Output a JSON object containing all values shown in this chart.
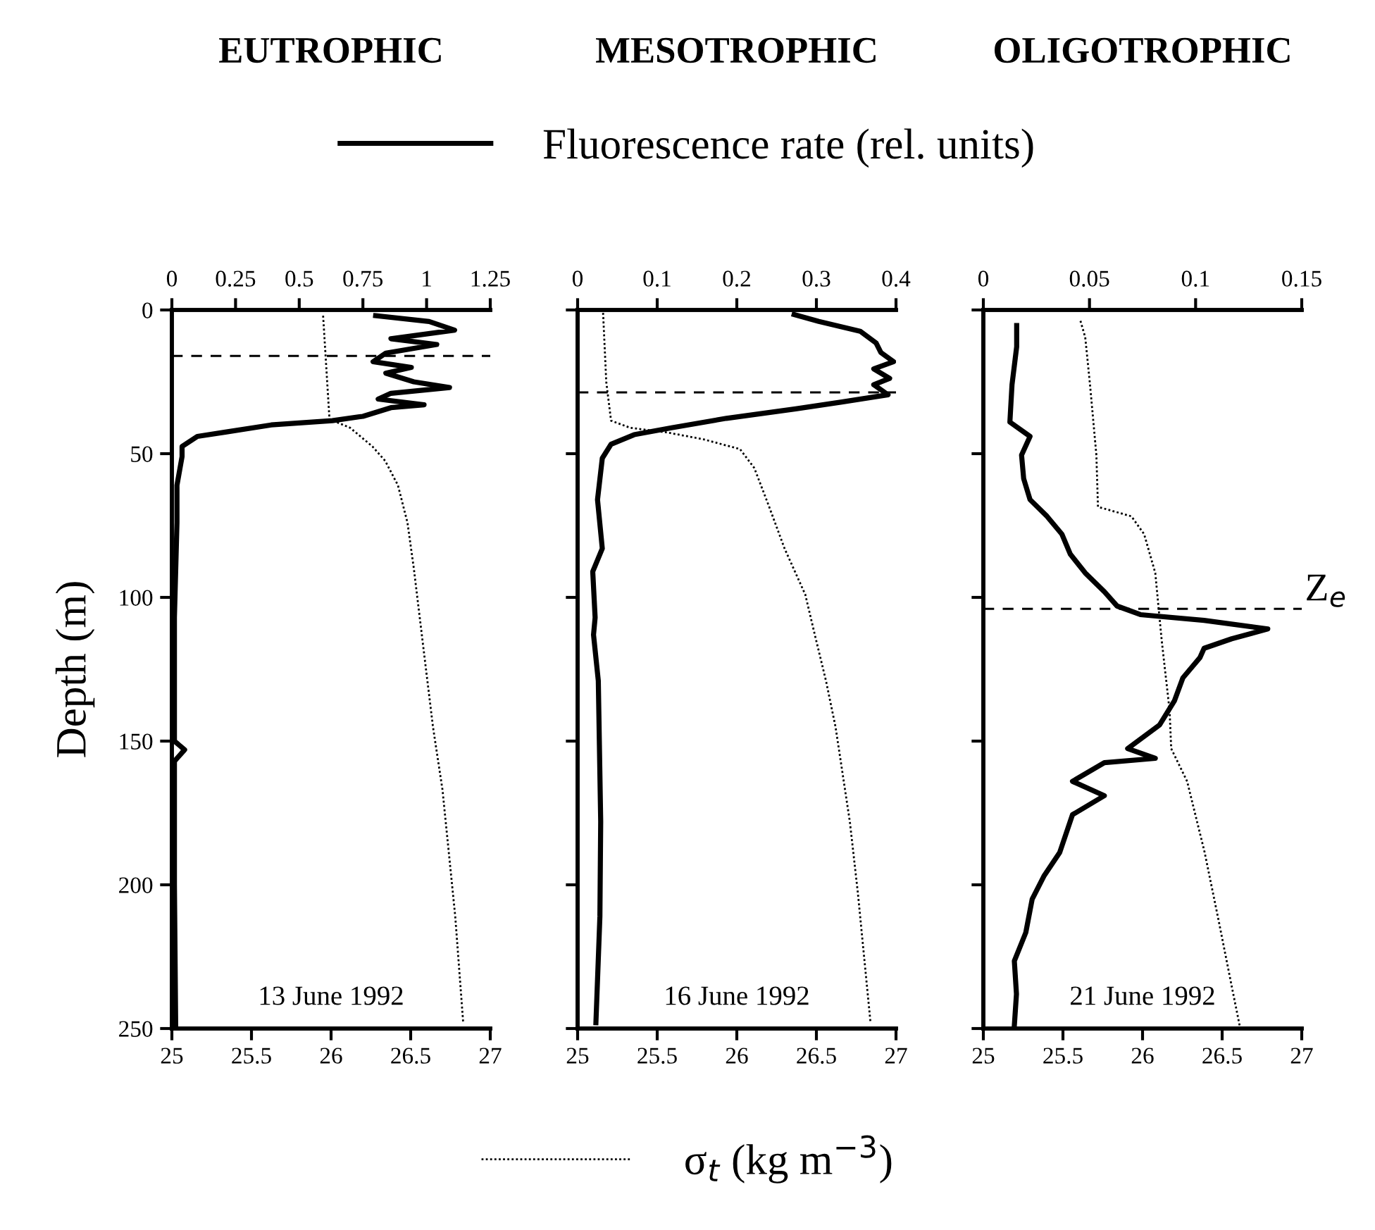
{
  "chart_data": [
    {
      "type": "line",
      "title": "EUTROPHIC",
      "ylabel": "Depth (m)",
      "legend": "top",
      "annotations": [
        "13 June 1992"
      ],
      "ylim": [
        250,
        0
      ],
      "yticks": [
        0,
        50,
        100,
        150,
        200,
        250
      ],
      "xlim": [
        25,
        27
      ],
      "xticks": [
        25,
        25.5,
        26,
        26.5,
        27
      ],
      "x2lim": [
        0,
        1.25
      ],
      "x2ticks": [
        0,
        0.25,
        0.5,
        0.75,
        1,
        1.25
      ],
      "grid": false,
      "ref_lines": [
        {
          "axis": "y",
          "value": 16,
          "line_style": "dashed"
        }
      ],
      "series": [
        {
          "name": "Fluorescence rate (rel. units)",
          "axis": "x2",
          "color": "#000000",
          "line_style": "solid",
          "x": [
            0.8,
            1.01,
            1.11,
            0.86,
            1.04,
            0.84,
            0.79,
            0.94,
            0.84,
            0.95,
            1.09,
            0.86,
            0.81,
            0.99,
            0.86,
            0.75,
            0.63,
            0.39,
            0.21,
            0.1,
            0.04,
            0.04,
            0.02,
            0.02,
            0.01,
            0.01,
            0.05,
            0.01,
            0.01,
            0.015
          ],
          "values": [
            2,
            4,
            7,
            10,
            12,
            15,
            18,
            20,
            22,
            25,
            27,
            29,
            31,
            33,
            34,
            37,
            38.5,
            40,
            42.5,
            44,
            47.5,
            51,
            61,
            74,
            107,
            150,
            153,
            157,
            200,
            250
          ]
        },
        {
          "name": "σ$_{t}$ (kg m$^{−3}$)",
          "color": "#000000",
          "line_style": "dotted",
          "x": [
            25.95,
            25.99,
            26.12,
            26.26,
            26.34,
            26.42,
            26.48,
            26.52,
            26.57,
            26.64,
            26.7,
            26.78,
            26.83
          ],
          "values": [
            2,
            38,
            41,
            47.5,
            52.5,
            61,
            74,
            90,
            113,
            145,
            167,
            211,
            248
          ]
        }
      ]
    },
    {
      "type": "line",
      "title": "MESOTROPHIC",
      "tick_labels": "x",
      "annotations": [
        "16 June 1992"
      ],
      "ylim": [
        250,
        0
      ],
      "yticks": [
        0,
        50,
        100,
        150,
        200,
        250
      ],
      "xlim": [
        25,
        27
      ],
      "xticks": [
        25,
        25.5,
        26,
        26.5,
        27
      ],
      "x2lim": [
        0,
        0.4
      ],
      "x2ticks": [
        0,
        0.1,
        0.2,
        0.3,
        0.4
      ],
      "grid": false,
      "ref_lines": [
        {
          "axis": "y",
          "value": 28.7,
          "line_style": "dashed"
        }
      ],
      "series": [
        {
          "axis": "x2",
          "color": "#000000",
          "line_style": "solid",
          "x": [
            0.272,
            0.303,
            0.355,
            0.375,
            0.381,
            0.397,
            0.372,
            0.392,
            0.372,
            0.39,
            0.332,
            0.274,
            0.187,
            0.118,
            0.071,
            0.042,
            0.031,
            0.025,
            0.031,
            0.019,
            0.022,
            0.02,
            0.026,
            0.029,
            0.028,
            0.023
          ],
          "values": [
            1.6,
            4,
            7.4,
            11.5,
            14.8,
            18,
            20.5,
            23.8,
            26,
            29.5,
            32,
            34.4,
            37.7,
            41,
            43.4,
            46.7,
            51.6,
            66,
            83,
            91,
            107,
            113,
            129,
            178,
            211,
            248
          ]
        },
        {
          "color": "#000000",
          "line_style": "dotted",
          "x": [
            25.16,
            25.18,
            25.21,
            25.33,
            25.56,
            25.79,
            26.02,
            26.11,
            26.2,
            26.3,
            26.43,
            26.49,
            26.56,
            26.62,
            26.71,
            26.76,
            26.84
          ],
          "values": [
            1,
            25,
            38.5,
            41,
            42.6,
            45,
            48.4,
            55,
            68,
            83,
            99,
            113,
            129,
            145,
            178,
            202.6,
            248
          ]
        }
      ]
    },
    {
      "type": "line",
      "title": "OLIGOTROPHIC",
      "tick_labels": "x",
      "annotations": [
        "21 June 1992"
      ],
      "ylim": [
        250,
        0
      ],
      "yticks": [
        0,
        50,
        100,
        150,
        200,
        250
      ],
      "xlim": [
        25,
        27
      ],
      "xticks": [
        25,
        25.5,
        26,
        26.5,
        27
      ],
      "x2lim": [
        0,
        0.15
      ],
      "x2ticks": [
        0,
        0.05,
        0.1,
        0.15
      ],
      "grid": false,
      "ref_lines": [
        {
          "axis": "y",
          "value": 104,
          "label": "Z$_{e}$",
          "line_style": "dashed"
        }
      ],
      "series": [
        {
          "axis": "x2",
          "color": "#000000",
          "line_style": "solid",
          "x": [
            0.0157,
            0.0157,
            0.0135,
            0.0125,
            0.022,
            0.018,
            0.019,
            0.022,
            0.03,
            0.037,
            0.041,
            0.048,
            0.057,
            0.063,
            0.074,
            0.104,
            0.134,
            0.117,
            0.104,
            0.102,
            0.094,
            0.09,
            0.083,
            0.068,
            0.081,
            0.057,
            0.042,
            0.057,
            0.042,
            0.036,
            0.0285,
            0.023,
            0.02,
            0.0146,
            0.0156,
            0.0146
          ],
          "values": [
            5.4,
            12.8,
            26,
            39,
            44,
            50.5,
            58.7,
            66,
            71.8,
            78,
            85,
            91.5,
            98,
            103,
            106,
            108,
            111,
            114.4,
            117.7,
            121,
            128,
            136,
            144.4,
            152.6,
            156,
            157.5,
            164,
            169,
            175.6,
            188.7,
            197,
            205,
            216.6,
            226.5,
            238,
            249
          ]
        },
        {
          "color": "#000000",
          "line_style": "dotted",
          "x": [
            25.61,
            25.64,
            25.67,
            25.71,
            25.72,
            25.93,
            26.01,
            26.08,
            26.12,
            26.17,
            26.18,
            26.28,
            26.39,
            26.48,
            26.57,
            26.61
          ],
          "values": [
            3.8,
            9.5,
            26,
            50.5,
            68.5,
            71.8,
            78,
            91.5,
            114.8,
            139.4,
            152.6,
            164,
            188.7,
            213,
            238,
            249
          ]
        }
      ]
    }
  ]
}
